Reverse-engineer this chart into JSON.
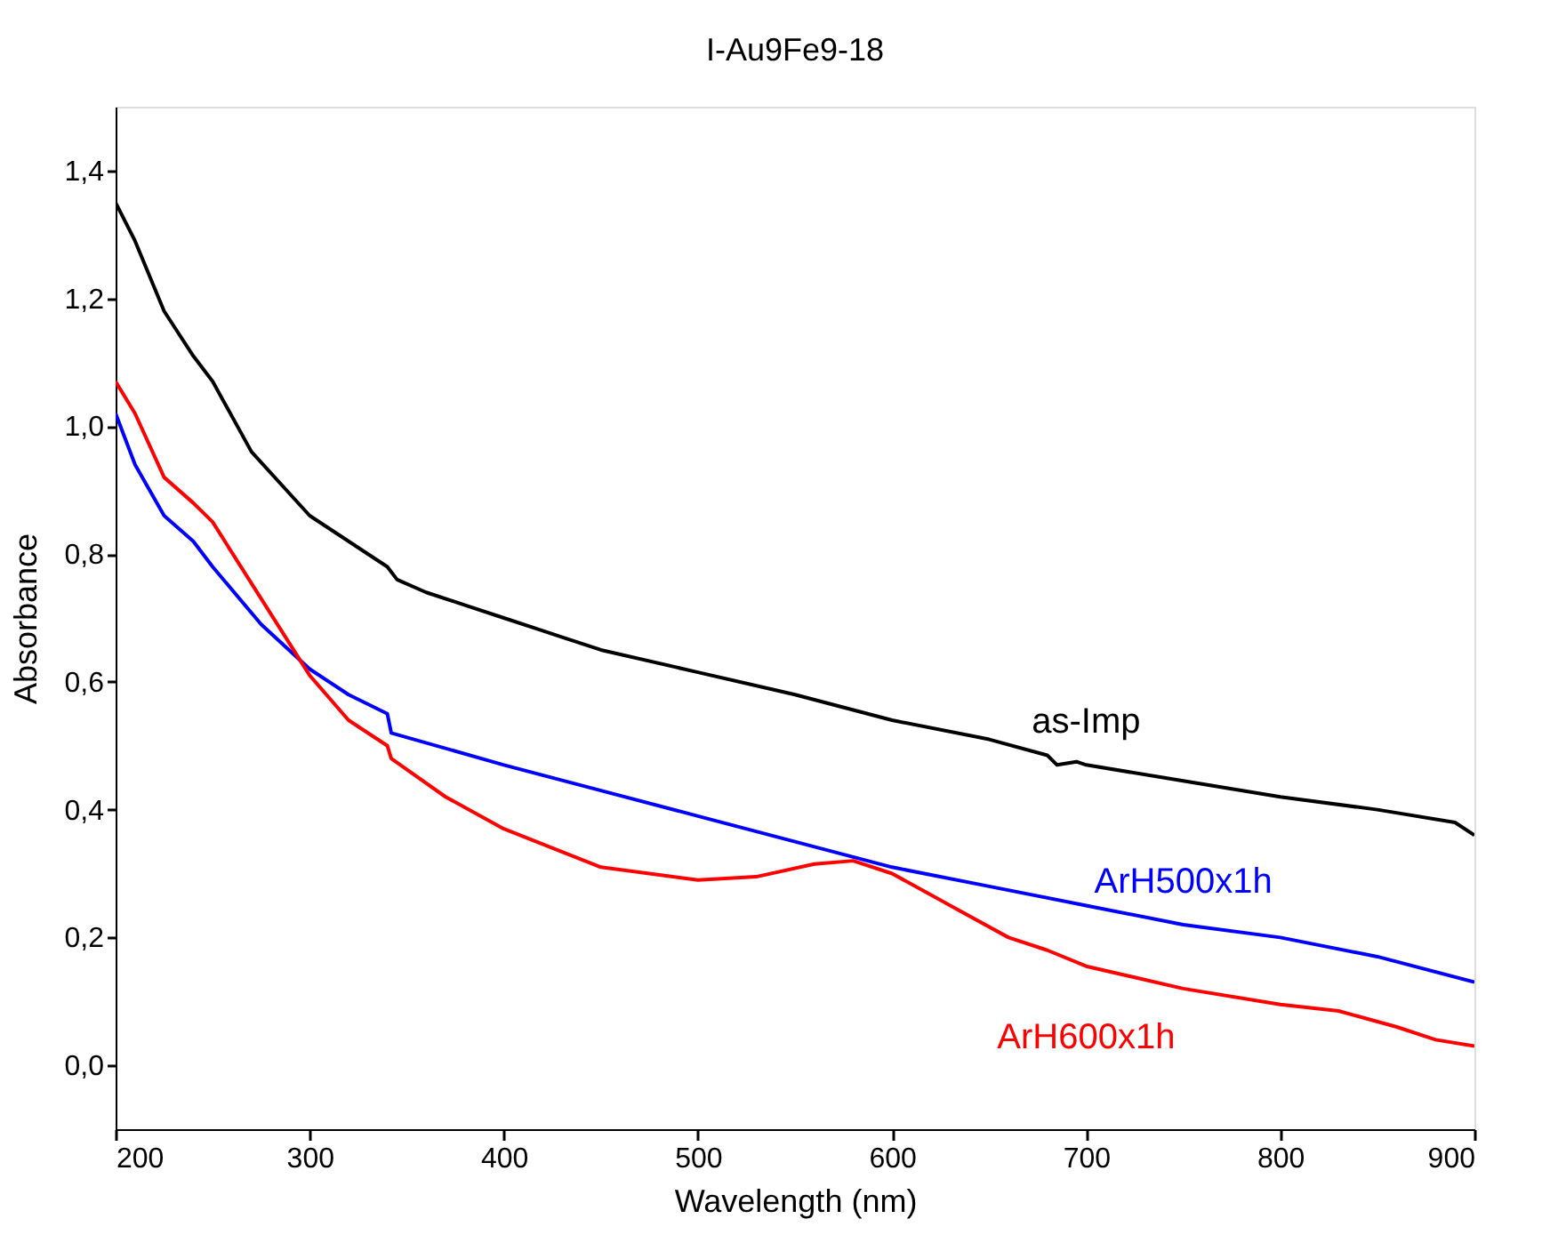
{
  "chart_data": {
    "type": "line",
    "title": "I-Au9Fe9-18",
    "xlabel": "Wavelength (nm)",
    "ylabel": "Absorbance",
    "xlim": [
      200,
      900
    ],
    "xticks": [
      200,
      300,
      400,
      500,
      600,
      700,
      800,
      900
    ],
    "ylim": [
      -0.1,
      1.5
    ],
    "yticks": [
      {
        "value": 0,
        "label": "0,0"
      },
      {
        "value": 0.2,
        "label": "0,2"
      },
      {
        "value": 0.4,
        "label": "0,4"
      },
      {
        "value": 0.6,
        "label": "0,6"
      },
      {
        "value": 0.8,
        "label": "0,8"
      },
      {
        "value": 1.0,
        "label": "1,0"
      },
      {
        "value": 1.2,
        "label": "1,2"
      },
      {
        "value": 1.4,
        "label": "1,4"
      }
    ],
    "grid": false,
    "marker": "none",
    "line_style": "solid",
    "series": [
      {
        "name": "as-Imp",
        "color": "#000000",
        "x": [
          200,
          210,
          225,
          240,
          250,
          270,
          300,
          320,
          340,
          345,
          360,
          380,
          400,
          420,
          430,
          450,
          500,
          550,
          600,
          650,
          680,
          685,
          695,
          700,
          750,
          800,
          850,
          890,
          900
        ],
        "values": [
          1.35,
          1.29,
          1.18,
          1.11,
          1.07,
          0.96,
          0.86,
          0.82,
          0.78,
          0.76,
          0.74,
          0.72,
          0.7,
          0.68,
          0.67,
          0.65,
          0.615,
          0.58,
          0.54,
          0.51,
          0.485,
          0.47,
          0.475,
          0.47,
          0.445,
          0.42,
          0.4,
          0.38,
          0.36
        ]
      },
      {
        "name": "ArH500x1h",
        "color": "#0000ff",
        "x": [
          200,
          210,
          225,
          240,
          250,
          275,
          300,
          320,
          340,
          342,
          400,
          450,
          500,
          550,
          600,
          650,
          700,
          750,
          800,
          850,
          900
        ],
        "values": [
          1.02,
          0.94,
          0.86,
          0.82,
          0.78,
          0.69,
          0.62,
          0.58,
          0.55,
          0.52,
          0.47,
          0.43,
          0.39,
          0.35,
          0.31,
          0.28,
          0.25,
          0.22,
          0.2,
          0.17,
          0.13
        ]
      },
      {
        "name": "ArH600x1h",
        "color": "#ff0000",
        "x": [
          200,
          210,
          225,
          240,
          250,
          275,
          300,
          320,
          340,
          342,
          370,
          400,
          450,
          500,
          530,
          560,
          580,
          600,
          630,
          660,
          680,
          700,
          750,
          800,
          830,
          860,
          880,
          900
        ],
        "values": [
          1.07,
          1.02,
          0.92,
          0.88,
          0.85,
          0.73,
          0.61,
          0.54,
          0.5,
          0.48,
          0.42,
          0.37,
          0.31,
          0.29,
          0.295,
          0.315,
          0.32,
          0.3,
          0.25,
          0.2,
          0.18,
          0.155,
          0.12,
          0.095,
          0.085,
          0.06,
          0.04,
          0.03
        ]
      }
    ]
  }
}
